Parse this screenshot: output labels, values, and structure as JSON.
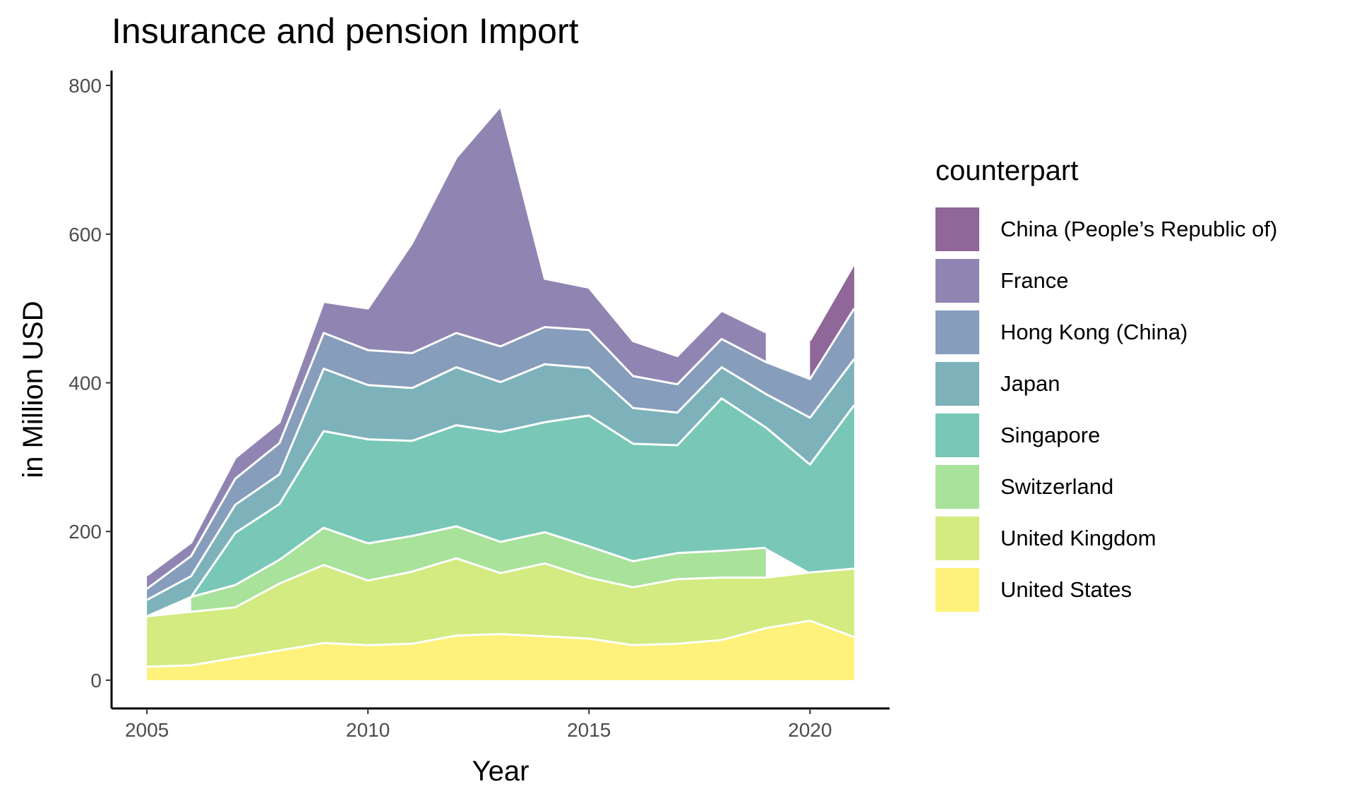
{
  "title": "Insurance and pension Import",
  "chart_data": {
    "type": "area",
    "stacked": true,
    "title": "Insurance and pension Import",
    "xlabel": "Year",
    "ylabel": "in Million USD",
    "xlim": [
      2004.2,
      2021.8
    ],
    "ylim": [
      -38,
      820
    ],
    "x_ticks": [
      2005,
      2010,
      2015,
      2020
    ],
    "y_ticks": [
      0,
      200,
      400,
      600,
      800
    ],
    "legend_title": "counterpart",
    "legend_position": "right",
    "grid": false,
    "x": [
      2005,
      2006,
      2007,
      2008,
      2009,
      2010,
      2011,
      2012,
      2013,
      2014,
      2015,
      2016,
      2017,
      2018,
      2019,
      2020,
      2021
    ],
    "series": [
      {
        "name": "United States",
        "color": "#FDE725",
        "values": [
          18,
          20,
          30,
          40,
          50,
          47,
          49,
          60,
          62,
          59,
          56,
          47,
          49,
          54,
          70,
          80,
          58
        ]
      },
      {
        "name": "United Kingdom",
        "color": "#B5DE2B",
        "values": [
          68,
          72,
          68,
          90,
          105,
          87,
          97,
          104,
          82,
          98,
          82,
          78,
          87,
          84,
          68,
          65,
          92
        ]
      },
      {
        "name": "Switzerland",
        "color": "#6ECE58",
        "values": [
          null,
          20,
          30,
          32,
          50,
          50,
          48,
          43,
          42,
          42,
          42,
          35,
          35,
          36,
          40,
          null,
          null
        ]
      },
      {
        "name": "Singapore",
        "color": "#1FA187",
        "values": [
          0,
          0,
          70,
          75,
          130,
          140,
          128,
          136,
          148,
          148,
          176,
          158,
          145,
          205,
          162,
          145,
          220
        ]
      },
      {
        "name": "Japan",
        "color": "#277F8E",
        "values": [
          22,
          28,
          38,
          40,
          84,
          73,
          71,
          78,
          67,
          78,
          64,
          48,
          44,
          42,
          45,
          63,
          62
        ]
      },
      {
        "name": "Hong Kong (China)",
        "color": "#365C8D",
        "values": [
          15,
          27,
          35,
          42,
          48,
          47,
          47,
          46,
          48,
          50,
          51,
          43,
          38,
          38,
          43,
          52,
          68
        ]
      },
      {
        "name": "France",
        "color": "#46337E",
        "values": [
          18,
          18,
          28,
          28,
          42,
          56,
          148,
          236,
          323,
          65,
          57,
          47,
          38,
          38,
          40,
          null,
          null
        ]
      },
      {
        "name": "China (People’s Republic of)",
        "color": "#440154",
        "values": [
          null,
          null,
          null,
          null,
          null,
          null,
          null,
          null,
          null,
          null,
          null,
          null,
          null,
          null,
          null,
          52,
          60
        ]
      }
    ]
  }
}
